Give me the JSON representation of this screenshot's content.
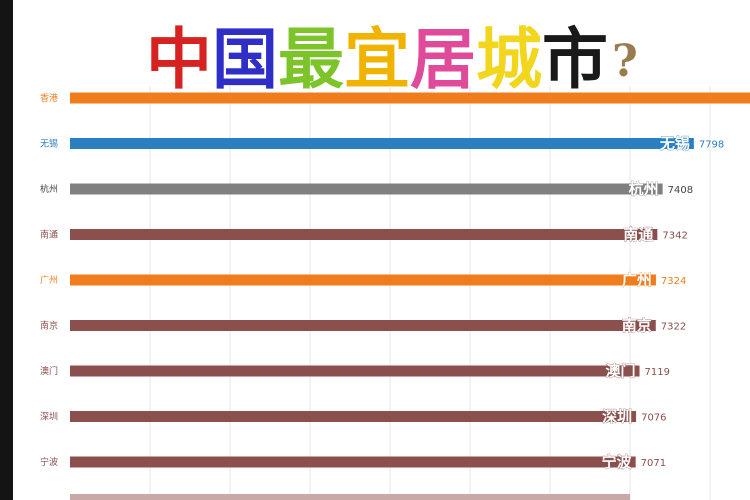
{
  "title_chars": [
    {
      "char": "中",
      "color": "#d72222"
    },
    {
      "char": "国",
      "color": "#2f2fc8"
    },
    {
      "char": "最",
      "color": "#7cc42a"
    },
    {
      "char": "宜",
      "color": "#f0b400"
    },
    {
      "char": "居",
      "color": "#e04a9a"
    },
    {
      "char": "城",
      "color": "#f2d61e"
    },
    {
      "char": "市",
      "color": "#1a1a1a"
    },
    {
      "char": "?",
      "color": "#9a7b4f"
    }
  ],
  "chart_data": {
    "type": "bar",
    "orientation": "horizontal",
    "title": "中国最宜居城市?",
    "xlim": [
      0,
      8500
    ],
    "grid": true,
    "categories": [
      "香港",
      "无锡",
      "杭州",
      "南通",
      "广州",
      "南京",
      "澳门",
      "深圳",
      "宁波"
    ],
    "bar_labels": [
      "",
      "无锡",
      "杭州",
      "南通",
      "广州",
      "南京",
      "澳门",
      "深圳",
      "宁波"
    ],
    "value_labels": [
      "",
      "7798",
      "7408",
      "7342",
      "7324",
      "7322",
      "7119",
      "7076",
      "7071"
    ],
    "values": [
      8500,
      7798,
      7408,
      7342,
      7324,
      7322,
      7119,
      7076,
      7071
    ],
    "colors": [
      "#ef7d1e",
      "#2a7fc1",
      "#808080",
      "#8b4f4d",
      "#ef7d1e",
      "#8b4f4d",
      "#8b4f4d",
      "#8b4f4d",
      "#8b4f4d"
    ],
    "label_colors": [
      "#ef7d1e",
      "#2a7fc1",
      "#444444",
      "#8b4f4d",
      "#ef7d1e",
      "#8b4f4d",
      "#8b4f4d",
      "#8b4f4d",
      "#8b4f4d"
    ]
  }
}
